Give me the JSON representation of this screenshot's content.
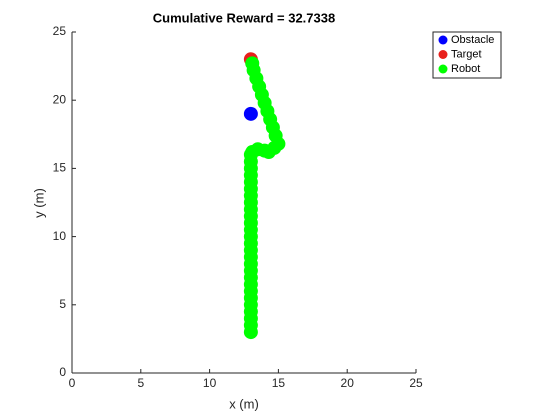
{
  "chart_data": {
    "type": "scatter",
    "title": "Cumulative Reward = 32.7338",
    "x_label": "x (m)",
    "y_label": "y (m)",
    "xlim": [
      0,
      25
    ],
    "ylim": [
      0,
      25
    ],
    "xticks": [
      0,
      5,
      10,
      15,
      20,
      25
    ],
    "yticks": [
      0,
      5,
      10,
      15,
      20,
      25
    ],
    "legend_position": "outside-top-right",
    "series": [
      {
        "name": "Obstacle",
        "color": "#0000ff",
        "x": [
          13
        ],
        "y": [
          19
        ]
      },
      {
        "name": "Target",
        "color": "#e8201c",
        "x": [
          13
        ],
        "y": [
          23
        ]
      },
      {
        "name": "Robot",
        "color": "#00ff00",
        "x": [
          13,
          13,
          13,
          13,
          13,
          13,
          13,
          13,
          13,
          13,
          13,
          13,
          13,
          13,
          13,
          13,
          13,
          13,
          13,
          13,
          13,
          13,
          13,
          13,
          13,
          13,
          13,
          13.1,
          13.5,
          14,
          14.3,
          14.7,
          15,
          14.8,
          14.6,
          14.4,
          14.2,
          14,
          13.8,
          13.6,
          13.4,
          13.2,
          13.1
        ],
        "y": [
          3,
          3.5,
          4,
          4.5,
          5,
          5.5,
          6,
          6.5,
          7,
          7.5,
          8,
          8.5,
          9,
          9.5,
          10,
          10.5,
          11,
          11.5,
          12,
          12.5,
          13,
          13.5,
          14,
          14.5,
          15,
          15.5,
          16,
          16.2,
          16.4,
          16.3,
          16.2,
          16.5,
          16.8,
          17.4,
          18,
          18.6,
          19.2,
          19.8,
          20.4,
          21,
          21.6,
          22.2,
          22.7
        ]
      }
    ]
  }
}
